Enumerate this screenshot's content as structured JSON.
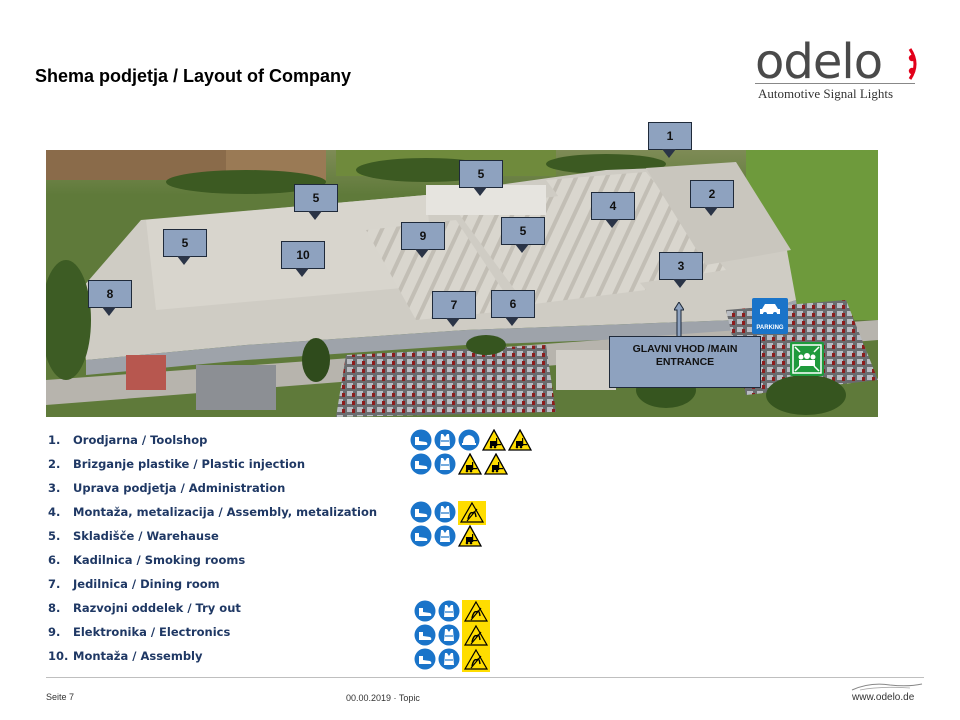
{
  "title": "Shema podjetja / Layout of Company",
  "logo": {
    "word": "odelo",
    "tagline": "Automotive Signal Lights",
    "accent": "#e2001a"
  },
  "callouts": [
    {
      "id": "c1",
      "label": "1"
    },
    {
      "id": "c2",
      "label": "2"
    },
    {
      "id": "c3",
      "label": "3"
    },
    {
      "id": "c4",
      "label": "4"
    },
    {
      "id": "c5a",
      "label": "5"
    },
    {
      "id": "c5b",
      "label": "5"
    },
    {
      "id": "c5c",
      "label": "5"
    },
    {
      "id": "c5d",
      "label": "5"
    },
    {
      "id": "c6",
      "label": "6"
    },
    {
      "id": "c7",
      "label": "7"
    },
    {
      "id": "c8",
      "label": "8"
    },
    {
      "id": "c9",
      "label": "9"
    },
    {
      "id": "c10",
      "label": "10"
    }
  ],
  "entrance": {
    "line1": "GLAVNI VHOD /MAIN",
    "line2": "ENTRANCE"
  },
  "parking_label": "PARKING",
  "legend": [
    {
      "num": "1.",
      "text": "Orodjarna / Toolshop",
      "icons": [
        "safety-shoes-icon",
        "safety-vest-icon",
        "hard-hat-icon",
        "forklift-warning-icon",
        "forklift-warning-icon"
      ]
    },
    {
      "num": "2.",
      "text": "Brizganje plastike / Plastic injection",
      "icons": [
        "safety-shoes-icon",
        "safety-vest-icon",
        "forklift-warning-icon",
        "forklift-warning-icon"
      ]
    },
    {
      "num": "3.",
      "text": "Uprava podjetja / Administration",
      "icons": []
    },
    {
      "num": "4.",
      "text": "Montaža, metalizacija  / Assembly, metalization",
      "icons": [
        "safety-shoes-icon",
        "safety-vest-icon",
        "esd-warning-icon"
      ]
    },
    {
      "num": "5.",
      "text": "Skladišče  /  Warehause",
      "icons": [
        "safety-shoes-icon",
        "safety-vest-icon",
        "forklift-warning-icon"
      ]
    },
    {
      "num": "6.",
      "text": "Kadilnica  / Smoking rooms",
      "icons": []
    },
    {
      "num": "7.",
      "text": "Jedilnica  / Dining room",
      "icons": []
    },
    {
      "num": "8.",
      "text": "Razvojni  oddelek / Try out",
      "icons": [
        "safety-shoes-icon",
        "safety-vest-icon",
        "esd-warning-icon"
      ]
    },
    {
      "num": "9.",
      "text": "Elektronika  / Electronics",
      "icons": [
        "safety-shoes-icon",
        "safety-vest-icon",
        "esd-warning-icon"
      ]
    },
    {
      "num": "10.",
      "text": "Montaža  / Assembly",
      "icons": [
        "safety-shoes-icon",
        "safety-vest-icon",
        "esd-warning-icon"
      ]
    }
  ],
  "footer": {
    "page": "Seite 7",
    "date_topic": "00.00.2019 · Topic",
    "website": "www.odelo.de"
  },
  "colors": {
    "callout_fill": "#8ea2bf",
    "legend_text": "#1f3864",
    "mandatory_blue": "#1a74c9",
    "warning_yellow": "#ffdd00"
  }
}
